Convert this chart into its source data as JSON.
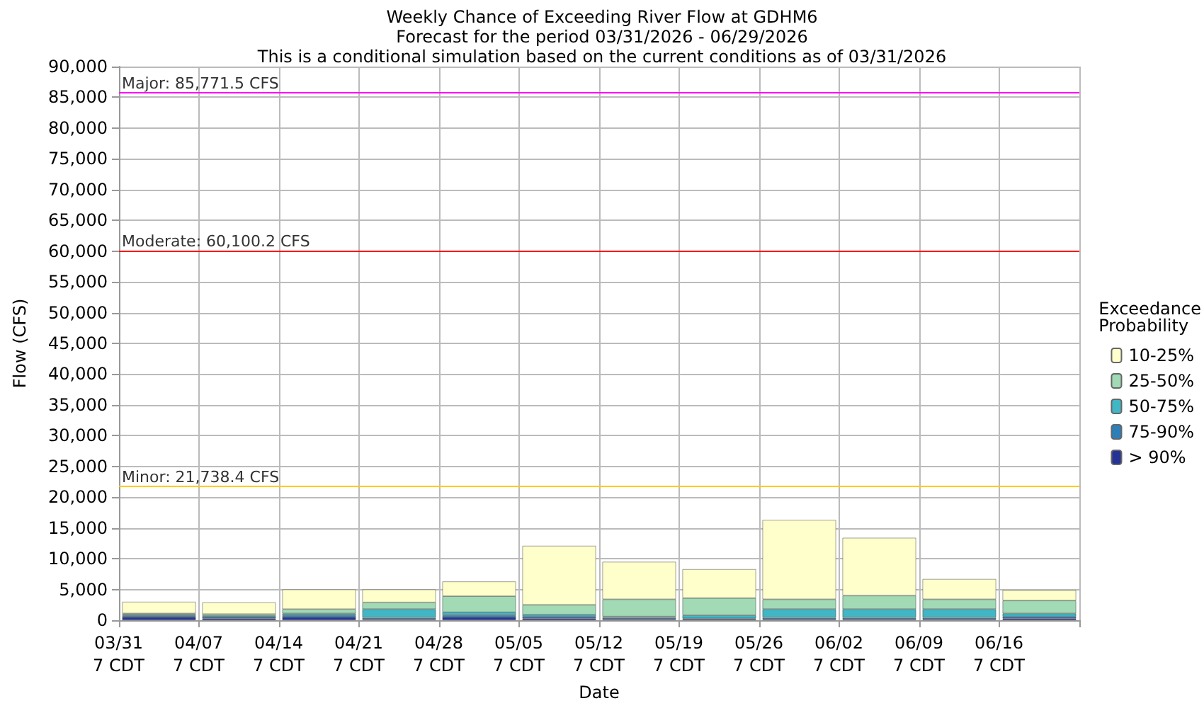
{
  "chart_data": {
    "type": "bar",
    "title": "Weekly Chance of Exceeding River Flow at GDHM6",
    "subtitle": "Forecast for the period 03/31/2026 - 06/29/2026\nThis is a conditional simulation based on the current conditions as of 03/31/2026",
    "xlabel": "Date",
    "ylabel": "Flow (CFS)",
    "legend_title": "Exceedance\nProbability",
    "categories": [
      "03/31\n7 CDT",
      "04/07\n7 CDT",
      "04/14\n7 CDT",
      "04/21\n7 CDT",
      "04/28\n7 CDT",
      "05/05\n7 CDT",
      "05/12\n7 CDT",
      "05/19\n7 CDT",
      "05/26\n7 CDT",
      "06/02\n7 CDT",
      "06/09\n7 CDT",
      "06/16\n7 CDT"
    ],
    "stacked": true,
    "series": [
      {
        "name": "> 90%",
        "color": "#253494",
        "values": [
          500,
          300,
          500,
          200,
          500,
          300,
          200,
          100,
          200,
          200,
          200,
          300
        ]
      },
      {
        "name": "75-90%",
        "color": "#2c7fb8",
        "values": [
          200,
          200,
          300,
          200,
          300,
          300,
          200,
          200,
          200,
          200,
          200,
          300
        ]
      },
      {
        "name": "50-75%",
        "color": "#41b6c4",
        "values": [
          200,
          200,
          300,
          1400,
          500,
          300,
          200,
          500,
          1400,
          1400,
          1400,
          500
        ]
      },
      {
        "name": "25-50%",
        "color": "#a1dab4",
        "values": [
          200,
          300,
          700,
          1100,
          2600,
          1600,
          2800,
          2800,
          1600,
          2200,
          1600,
          2100
        ]
      },
      {
        "name": "10-25%",
        "color": "#ffffcc",
        "values": [
          1900,
          1900,
          3200,
          2100,
          2400,
          9600,
          6100,
          4700,
          12900,
          9400,
          3300,
          1700
        ]
      }
    ],
    "ylim": [
      0,
      90000
    ],
    "yticks": [
      0,
      {
        "value": 5000,
        "label": "5,000"
      },
      {
        "value": 10000,
        "label": "10,000"
      },
      {
        "value": 15000,
        "label": "15,000"
      },
      {
        "value": 20000,
        "label": "20,000"
      },
      {
        "value": 25000,
        "label": "25,000"
      },
      {
        "value": 30000,
        "label": "30,000"
      },
      {
        "value": 35000,
        "label": "35,000"
      },
      {
        "value": 40000,
        "label": "40,000"
      },
      {
        "value": 45000,
        "label": "45,000"
      },
      {
        "value": 50000,
        "label": "50,000"
      },
      {
        "value": 55000,
        "label": "55,000"
      },
      {
        "value": 60000,
        "label": "60,000"
      },
      {
        "value": 65000,
        "label": "65,000"
      },
      {
        "value": 70000,
        "label": "70,000"
      },
      {
        "value": 75000,
        "label": "75,000"
      },
      {
        "value": 80000,
        "label": "80,000"
      },
      {
        "value": 85000,
        "label": "85,000"
      },
      {
        "value": 90000,
        "label": "90,000"
      }
    ],
    "ref_lines": [
      {
        "axis": "y",
        "value": 85771.5,
        "label": "Major: 85,771.5 CFS",
        "color": "#ff00ff"
      },
      {
        "axis": "y",
        "value": 60100.2,
        "label": "Moderate: 60,100.2 CFS",
        "color": "#ff0000"
      },
      {
        "axis": "y",
        "value": 21738.4,
        "label": "Minor: 21,738.4 CFS",
        "color": "#ffcc00"
      }
    ],
    "grid": true,
    "legend": "right"
  }
}
